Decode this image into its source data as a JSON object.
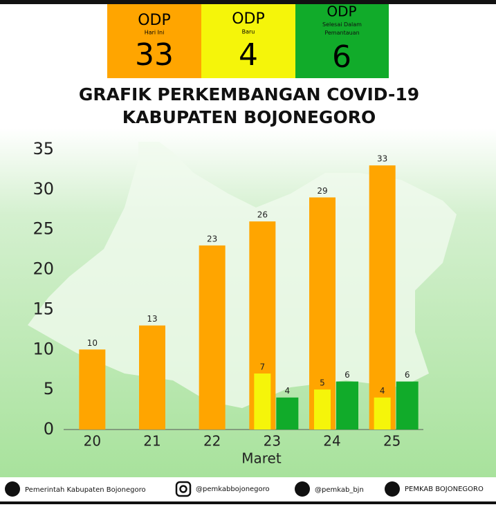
{
  "header": {
    "boxes": [
      {
        "title": "ODP",
        "subtitle": "Hari Ini",
        "value": 33
      },
      {
        "title": "ODP",
        "subtitle": "Baru",
        "value": 4
      },
      {
        "title": "ODP",
        "subtitle": "Selesai Dalam Pemantauan",
        "value": 6
      }
    ]
  },
  "chart_data": {
    "type": "bar",
    "title": "GRAFIK PERKEMBANGAN COVID-19",
    "subtitle": "KABUPATEN BOJONEGORO",
    "x_label": "Maret",
    "categories": [
      "20",
      "21",
      "22",
      "23",
      "24",
      "25"
    ],
    "series": [
      {
        "color": "#ffa500",
        "values": [
          10,
          13,
          23,
          26,
          29,
          33
        ]
      },
      {
        "color": "#f5f50a",
        "values": [
          null,
          null,
          null,
          7,
          5,
          4
        ]
      },
      {
        "color": "#11ab2a",
        "values": [
          null,
          null,
          null,
          4,
          6,
          6
        ]
      }
    ],
    "ylim": [
      0,
      35
    ],
    "yticks": [
      0,
      5,
      10,
      15,
      20,
      25,
      30,
      35
    ]
  },
  "footer": {
    "items": [
      "Pemerintah Kabupaten Bojonegoro",
      "@pemkabbojonegoro",
      "@pemkab_bjn",
      "PEMKAB BOJONEGORO"
    ]
  }
}
